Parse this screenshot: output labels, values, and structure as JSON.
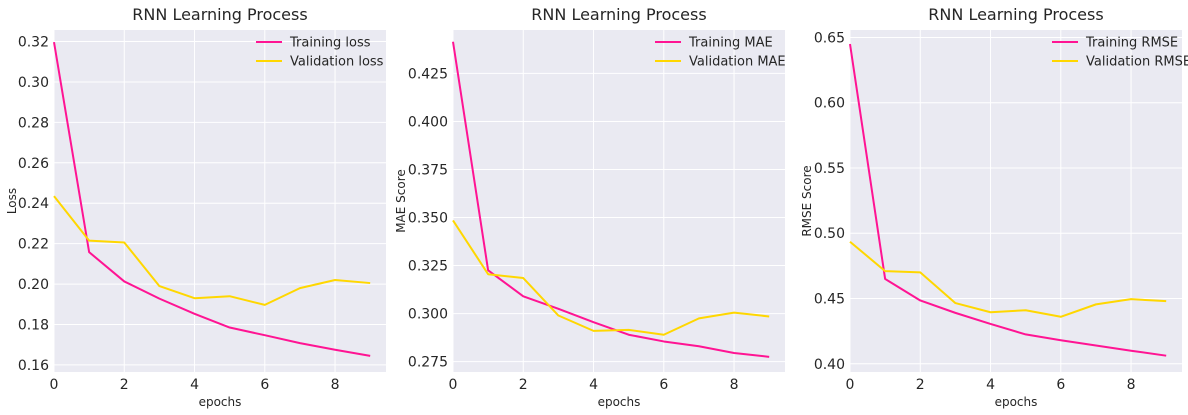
{
  "colors": {
    "background": "#eaeaf2",
    "grid": "#ffffff",
    "training": "#ff1493",
    "validation": "#ffd700",
    "text": "#262626"
  },
  "chart_data": [
    {
      "type": "line",
      "title": "RNN Learning Process",
      "xlabel": "epochs",
      "ylabel": "Loss",
      "x": [
        0,
        1,
        2,
        3,
        4,
        5,
        6,
        7,
        8,
        9
      ],
      "xlim": [
        0,
        9.45
      ],
      "ylim": [
        0.1565,
        0.3257
      ],
      "xticks": [
        0,
        2,
        4,
        6,
        8
      ],
      "xtick_labels": [
        "0",
        "2",
        "4",
        "6",
        "8"
      ],
      "yticks": [
        0.16,
        0.18,
        0.2,
        0.22,
        0.24,
        0.26,
        0.28,
        0.3,
        0.32
      ],
      "ytick_labels": [
        "0.16",
        "0.18",
        "0.20",
        "0.22",
        "0.24",
        "0.26",
        "0.28",
        "0.30",
        "0.32"
      ],
      "grid": true,
      "legend": "top-right",
      "series": [
        {
          "name": "Training loss",
          "color": "#ff1493",
          "values": [
            0.3197,
            0.2158,
            0.2013,
            0.1928,
            0.1853,
            0.1785,
            0.1747,
            0.1708,
            0.1675,
            0.1645
          ]
        },
        {
          "name": "Validation loss",
          "color": "#ffd700",
          "values": [
            0.2435,
            0.2215,
            0.2206,
            0.199,
            0.193,
            0.194,
            0.1897,
            0.198,
            0.202,
            0.2005
          ]
        }
      ]
    },
    {
      "type": "line",
      "title": "RNN Learning Process",
      "xlabel": "epochs",
      "ylabel": "MAE Score",
      "x": [
        0,
        1,
        2,
        3,
        4,
        5,
        6,
        7,
        8,
        9
      ],
      "xlim": [
        0,
        9.45
      ],
      "ylim": [
        0.2696,
        0.4476
      ],
      "xticks": [
        0,
        2,
        4,
        6,
        8
      ],
      "xtick_labels": [
        "0",
        "2",
        "4",
        "6",
        "8"
      ],
      "yticks": [
        0.275,
        0.3,
        0.325,
        0.35,
        0.375,
        0.4,
        0.425
      ],
      "ytick_labels": [
        "0.275",
        "0.300",
        "0.325",
        "0.350",
        "0.375",
        "0.400",
        "0.425"
      ],
      "grid": true,
      "legend": "top-right",
      "series": [
        {
          "name": "Training MAE",
          "color": "#ff1493",
          "values": [
            0.4415,
            0.3225,
            0.309,
            0.3025,
            0.2955,
            0.289,
            0.2855,
            0.283,
            0.2795,
            0.2775
          ]
        },
        {
          "name": "Validation MAE",
          "color": "#ffd700",
          "values": [
            0.3485,
            0.3205,
            0.3185,
            0.299,
            0.291,
            0.2915,
            0.289,
            0.2975,
            0.3005,
            0.2985
          ]
        }
      ]
    },
    {
      "type": "line",
      "title": "RNN Learning Process",
      "xlabel": "epochs",
      "ylabel": "RMSE Score",
      "x": [
        0,
        1,
        2,
        3,
        4,
        5,
        6,
        7,
        8,
        9
      ],
      "xlim": [
        0,
        9.45
      ],
      "ylim": [
        0.3937,
        0.6557
      ],
      "xticks": [
        0,
        2,
        4,
        6,
        8
      ],
      "xtick_labels": [
        "0",
        "2",
        "4",
        "6",
        "8"
      ],
      "yticks": [
        0.4,
        0.45,
        0.5,
        0.55,
        0.6,
        0.65
      ],
      "ytick_labels": [
        "0.40",
        "0.45",
        "0.50",
        "0.55",
        "0.60",
        "0.65"
      ],
      "grid": true,
      "legend": "top-right",
      "series": [
        {
          "name": "Training RMSE",
          "color": "#ff1493",
          "values": [
            0.645,
            0.465,
            0.4485,
            0.439,
            0.4305,
            0.4225,
            0.418,
            0.414,
            0.41,
            0.4062
          ]
        },
        {
          "name": "Validation RMSE",
          "color": "#ffd700",
          "values": [
            0.4935,
            0.471,
            0.47,
            0.4465,
            0.4395,
            0.441,
            0.436,
            0.4455,
            0.4495,
            0.448
          ]
        }
      ]
    }
  ]
}
